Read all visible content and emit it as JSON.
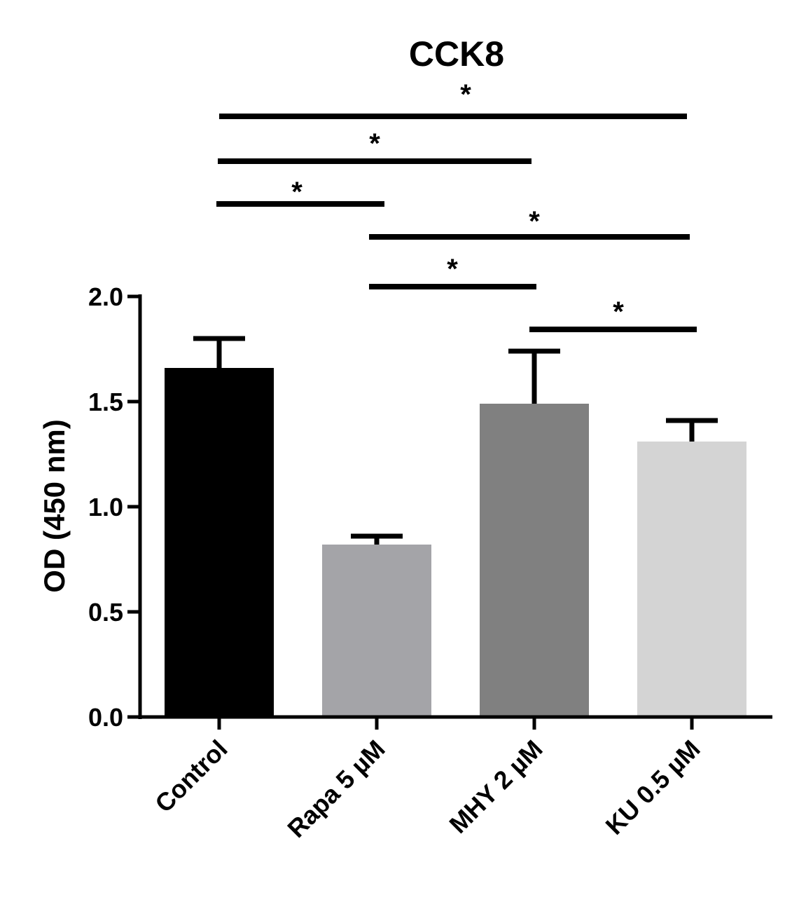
{
  "chart_data": {
    "type": "bar",
    "title": "CCK8",
    "xlabel": "",
    "ylabel": "OD (450 nm)",
    "ylim": [
      0,
      2.0
    ],
    "yticks": [
      0.0,
      0.5,
      1.0,
      1.5,
      2.0
    ],
    "ytick_labels": [
      "0.0",
      "0.5",
      "1.0",
      "1.5",
      "2.0"
    ],
    "categories": [
      "Control",
      "Rapa 5 µM",
      "MHY 2 µM",
      "KU 0.5 µM"
    ],
    "values": [
      1.66,
      0.82,
      1.49,
      1.31
    ],
    "errors": [
      0.14,
      0.04,
      0.25,
      0.1
    ],
    "colors": [
      "#000000",
      "#a4a4a8",
      "#808080",
      "#d4d4d4"
    ],
    "grid": false,
    "significance": [
      {
        "from": "Control",
        "to": "KU 0.5 µM",
        "label": "*"
      },
      {
        "from": "Control",
        "to": "MHY 2 µM",
        "label": "*"
      },
      {
        "from": "Control",
        "to": "Rapa 5 µM",
        "label": "*"
      },
      {
        "from": "Rapa 5 µM",
        "to": "KU 0.5 µM",
        "label": "*"
      },
      {
        "from": "Rapa 5 µM",
        "to": "MHY 2 µM",
        "label": "*"
      },
      {
        "from": "MHY 2 µM",
        "to": "KU 0.5 µM",
        "label": "*"
      }
    ]
  }
}
